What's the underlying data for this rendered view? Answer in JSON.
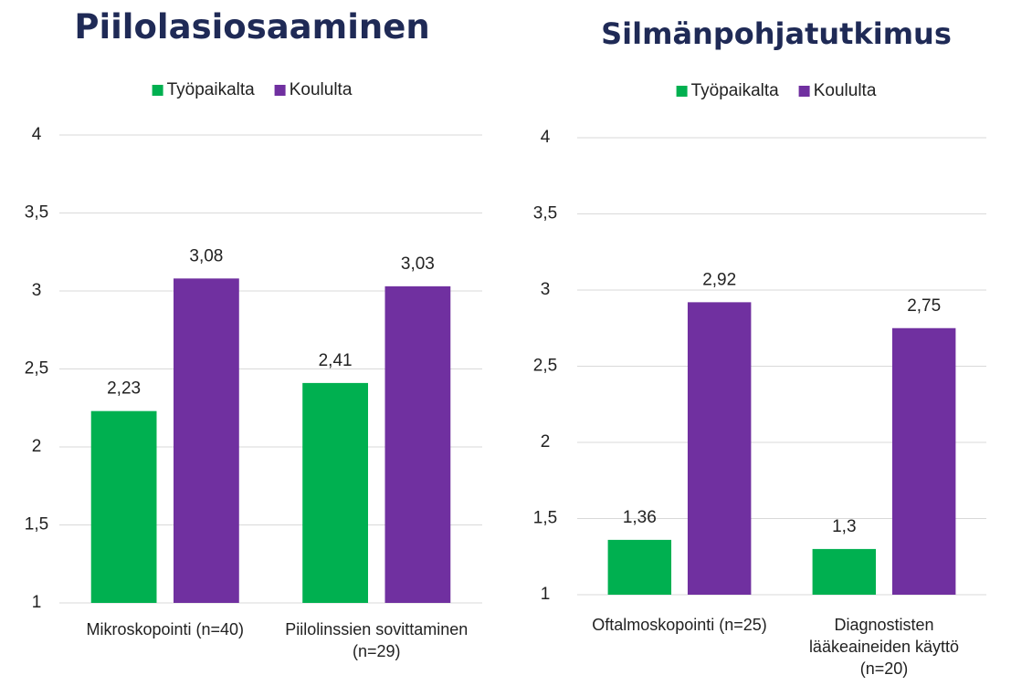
{
  "chart_data": [
    {
      "type": "bar",
      "title": "Piilolasiosaaminen",
      "categories": [
        "Mikroskopointi (n=40)",
        "Piilolinssien sovittaminen (n=29)"
      ],
      "series": [
        {
          "name": "Työpaikalta",
          "color": "#00b050",
          "values": [
            2.23,
            2.41
          ],
          "value_labels": [
            "2,23",
            "2,41"
          ]
        },
        {
          "name": "Koululta",
          "color": "#7030a0",
          "values": [
            3.08,
            3.03
          ],
          "value_labels": [
            "3,08",
            "3,03"
          ]
        }
      ],
      "ylim": [
        1,
        4
      ],
      "yticks": [
        1,
        {
          "value": 1.5,
          "label": "1,5"
        },
        2,
        {
          "value": 2.5,
          "label": "2,5"
        },
        3,
        {
          "value": 3.5,
          "label": "3,5"
        },
        4
      ],
      "grid": true,
      "legend": "top"
    },
    {
      "type": "bar",
      "title": "Silmänpohjatutkimus",
      "categories": [
        "Oftalmoskopointi (n=25)",
        "Diagnostisten lääkeaineiden käyttö (n=20)"
      ],
      "series": [
        {
          "name": "Työpaikalta",
          "color": "#00b050",
          "values": [
            1.36,
            1.3
          ],
          "value_labels": [
            "1,36",
            "1,3"
          ]
        },
        {
          "name": "Koululta",
          "color": "#7030a0",
          "values": [
            2.92,
            2.75
          ],
          "value_labels": [
            "2,92",
            "2,75"
          ]
        }
      ],
      "ylim": [
        1,
        4
      ],
      "yticks": [
        1,
        {
          "value": 1.5,
          "label": "1,5"
        },
        2,
        {
          "value": 2.5,
          "label": "2,5"
        },
        3,
        {
          "value": 3.5,
          "label": "3,5"
        },
        4
      ],
      "grid": true,
      "legend": "top"
    }
  ]
}
